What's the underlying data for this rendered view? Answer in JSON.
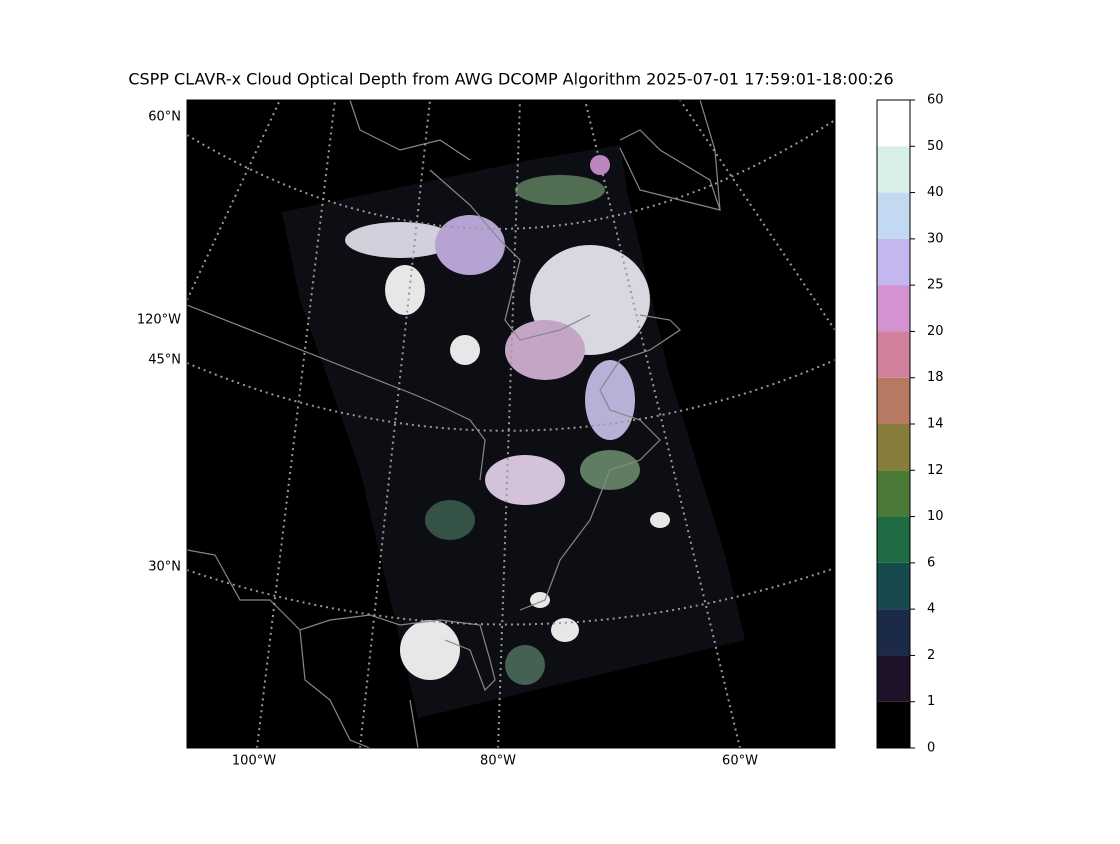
{
  "title": "CSPP CLAVR-x Cloud Optical Depth from AWG DCOMP Algorithm 2025-07-01 17:59:01-18:00:26",
  "map": {
    "lat_labels": [
      "60°N",
      "120°W",
      "45°N",
      "30°N"
    ],
    "lon_labels": [
      "100°W",
      "80°W",
      "60°W"
    ]
  },
  "colorbar": {
    "bounds": [
      0,
      1,
      2,
      4,
      6,
      10,
      12,
      14,
      18,
      20,
      25,
      30,
      40,
      50,
      60
    ],
    "colors": [
      "#000000",
      "#1e1128",
      "#1c2a4a",
      "#174a4c",
      "#1f6b43",
      "#4a7a35",
      "#887c3a",
      "#b67a62",
      "#d0809a",
      "#d393d3",
      "#c4b6ef",
      "#c3d9f2",
      "#d8f0e8",
      "#ffffff"
    ]
  }
}
